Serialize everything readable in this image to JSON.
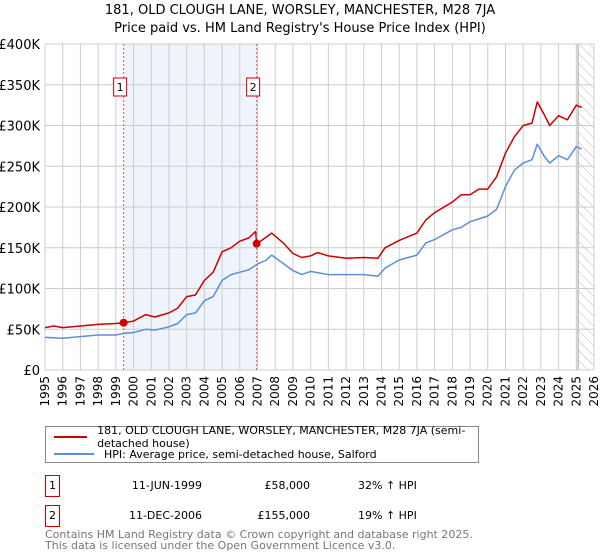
{
  "title": {
    "line1": "181, OLD CLOUGH LANE, WORSLEY, MANCHESTER, M28 7JA",
    "line2": "Price paid vs. HM Land Registry's House Price Index (HPI)"
  },
  "colors": {
    "property": "#cc0000",
    "hpi": "#5b8fd6",
    "shade": "#eef3fc",
    "grid": "#cccccc"
  },
  "chart_data": {
    "type": "line",
    "title": "181, OLD CLOUGH LANE, WORSLEY, MANCHESTER, M28 7JA — Price paid vs. HM Land Registry's House Price Index (HPI)",
    "xlim": [
      1995,
      2026
    ],
    "ylim": [
      0,
      400000
    ],
    "x_ticks": [
      "1995",
      "1996",
      "1997",
      "1998",
      "1999",
      "2000",
      "2001",
      "2002",
      "2003",
      "2004",
      "2005",
      "2006",
      "2007",
      "2008",
      "2009",
      "2010",
      "2011",
      "2012",
      "2013",
      "2014",
      "2015",
      "2016",
      "2017",
      "2018",
      "2019",
      "2020",
      "2021",
      "2022",
      "2023",
      "2024",
      "2025",
      "2026"
    ],
    "y_ticks": [
      {
        "v": 0,
        "label": "£0"
      },
      {
        "v": 50000,
        "label": "£50K"
      },
      {
        "v": 100000,
        "label": "£100K"
      },
      {
        "v": 150000,
        "label": "£150K"
      },
      {
        "v": 200000,
        "label": "£200K"
      },
      {
        "v": 250000,
        "label": "£250K"
      },
      {
        "v": 300000,
        "label": "£300K"
      },
      {
        "v": 350000,
        "label": "£350K"
      },
      {
        "v": 400000,
        "label": "£400K"
      }
    ],
    "grid": true,
    "shaded_range": [
      1999.44,
      2006.95
    ],
    "forecast_hatch_from": 2025.1,
    "series": [
      {
        "name": "181, OLD CLOUGH LANE, WORSLEY, MANCHESTER, M28 7JA (semi-detached house)",
        "color": "#cc0000",
        "x": [
          1995,
          1995.5,
          1996,
          1997,
          1998,
          1999,
          1999.44,
          2000,
          2000.7,
          2001.2,
          2002,
          2002.5,
          2003,
          2003.5,
          2004,
          2004.5,
          2005,
          2005.5,
          2006,
          2006.5,
          2006.9,
          2006.95,
          2007.3,
          2007.8,
          2008.5,
          2009,
          2009.5,
          2010,
          2010.4,
          2011,
          2012,
          2013,
          2013.8,
          2014.2,
          2015,
          2016,
          2016.5,
          2017,
          2018,
          2018.5,
          2019,
          2019.5,
          2020,
          2020.5,
          2021,
          2021.5,
          2022,
          2022.5,
          2022.8,
          2023.2,
          2023.5,
          2024,
          2024.5,
          2025,
          2025.3
        ],
        "y": [
          52000,
          54000,
          52000,
          54000,
          56000,
          57000,
          58000,
          60000,
          68000,
          65000,
          70000,
          76000,
          90000,
          92000,
          110000,
          120000,
          145000,
          150000,
          158000,
          162000,
          170000,
          155000,
          160000,
          168000,
          155000,
          143000,
          138000,
          140000,
          144000,
          140000,
          137000,
          138000,
          137000,
          150000,
          159000,
          168000,
          184000,
          193000,
          206000,
          215000,
          215000,
          222000,
          222000,
          237000,
          266000,
          286000,
          300000,
          303000,
          329000,
          313000,
          300000,
          312000,
          307000,
          325000,
          322000
        ]
      },
      {
        "name": "HPI: Average price, semi-detached house, Salford",
        "color": "#5b8fd6",
        "x": [
          1995,
          1996,
          1997,
          1998,
          1999,
          1999.5,
          2000,
          2000.7,
          2001.2,
          2002,
          2002.5,
          2003,
          2003.5,
          2004,
          2004.5,
          2005,
          2005.5,
          2006,
          2006.5,
          2007,
          2007.5,
          2007.8,
          2008.5,
          2009,
          2009.5,
          2010,
          2011,
          2012,
          2013,
          2013.8,
          2014.2,
          2015,
          2016,
          2016.5,
          2017,
          2018,
          2018.5,
          2019,
          2020,
          2020.5,
          2021,
          2021.5,
          2022,
          2022.5,
          2022.8,
          2023.2,
          2023.5,
          2024,
          2024.5,
          2025,
          2025.3
        ],
        "y": [
          40000,
          39000,
          41000,
          43000,
          43000,
          45000,
          46000,
          50000,
          49000,
          53000,
          57000,
          68000,
          70000,
          85000,
          90000,
          110000,
          117000,
          120000,
          123000,
          130000,
          135000,
          141000,
          130000,
          122000,
          117000,
          121000,
          117000,
          117000,
          117000,
          115000,
          125000,
          135000,
          141000,
          156000,
          160000,
          172000,
          175000,
          182000,
          189000,
          197000,
          225000,
          245000,
          254000,
          258000,
          277000,
          262000,
          254000,
          263000,
          258000,
          274000,
          271000
        ]
      }
    ],
    "sales": [
      {
        "id": "1",
        "x": 1999.44,
        "y": 58000,
        "date": "11-JUN-1999",
        "price": "£58,000",
        "hpi": "32% ↑ HPI"
      },
      {
        "id": "2",
        "x": 2006.95,
        "y": 155000,
        "date": "11-DEC-2006",
        "price": "£155,000",
        "hpi": "19% ↑ HPI"
      }
    ],
    "legend_position": "below"
  },
  "legend": {
    "property": "181, OLD CLOUGH LANE, WORSLEY, MANCHESTER, M28 7JA (semi-detached house)",
    "hpi": "HPI: Average price, semi-detached house, Salford"
  },
  "footer": {
    "line1": "Contains HM Land Registry data © Crown copyright and database right 2025.",
    "line2": "This data is licensed under the Open Government Licence v3.0."
  }
}
